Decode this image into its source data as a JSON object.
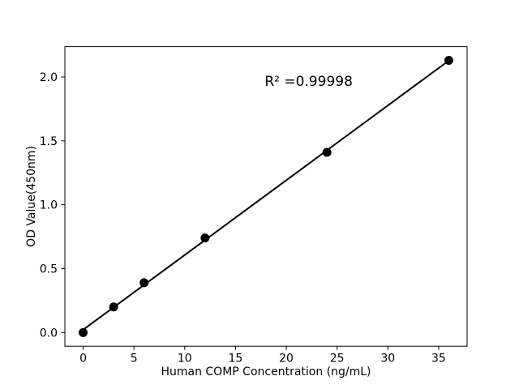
{
  "figure": {
    "background_color": "#ffffff",
    "foreground_color": "#000000"
  },
  "chart_data": {
    "type": "scatter",
    "title": "",
    "xlabel": "Human COMP Concentration (ng/mL)",
    "ylabel": "OD Value(450nm)",
    "annotation": {
      "text": "R² =0.99998",
      "x": 22.2,
      "y": 1.93
    },
    "points": {
      "x": [
        0,
        3,
        6,
        12,
        24,
        36
      ],
      "y": [
        0.0,
        0.2,
        0.39,
        0.74,
        1.41,
        2.13
      ]
    },
    "fit_line": {
      "style": "linear-regression",
      "color": "#000000"
    },
    "marker": {
      "shape": "circle",
      "color": "#000000"
    },
    "xticks": [
      "0",
      "5",
      "10",
      "15",
      "20",
      "25",
      "30",
      "35"
    ],
    "xtick_values": [
      0,
      5,
      10,
      15,
      20,
      25,
      30,
      35
    ],
    "yticks": [
      "0.0",
      "0.5",
      "1.0",
      "1.5",
      "2.0"
    ],
    "ytick_values": [
      0.0,
      0.5,
      1.0,
      1.5,
      2.0
    ],
    "xlim": [
      -1.8,
      37.8
    ],
    "ylim": [
      -0.107,
      2.237
    ],
    "grid": false,
    "legend_position": "none"
  }
}
